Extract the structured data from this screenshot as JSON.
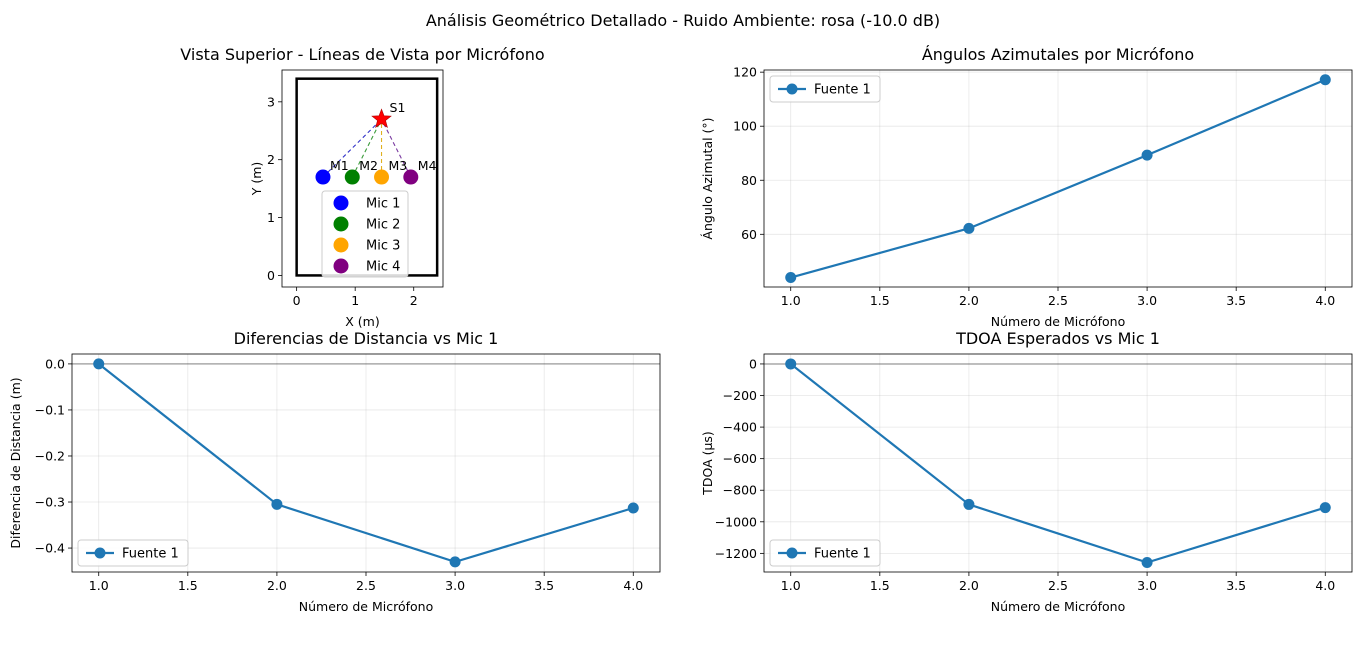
{
  "figure": {
    "suptitle": "Análisis Geométrico Detallado - Ruido Ambiente: rosa (-10.0 dB)"
  },
  "chart_data": [
    {
      "id": "top",
      "type": "scatter",
      "title": "Vista Superior - Líneas de Vista por Micrófono",
      "xlabel": "X (m)",
      "ylabel": "Y (m)",
      "xlim": [
        -0.25,
        2.5
      ],
      "ylim": [
        -0.2,
        3.55
      ],
      "xticks": [
        0,
        1,
        2
      ],
      "yticks": [
        0,
        1,
        2,
        3
      ],
      "grid": false,
      "room": {
        "x0": 0,
        "y0": 0,
        "x1": 2.4,
        "y1": 3.4
      },
      "source": {
        "label": "S1",
        "x": 1.45,
        "y": 2.7,
        "color": "#ff0000"
      },
      "mics": [
        {
          "label": "M1",
          "legend": "Mic 1",
          "x": 0.45,
          "y": 1.7,
          "color": "#0000ff",
          "line_color": "#3232c8"
        },
        {
          "label": "M2",
          "legend": "Mic 2",
          "x": 0.95,
          "y": 1.7,
          "color": "#008000",
          "line_color": "#3a9b3a"
        },
        {
          "label": "M3",
          "legend": "Mic 3",
          "x": 1.45,
          "y": 1.7,
          "color": "#ffa500",
          "line_color": "#e0b020"
        },
        {
          "label": "M4",
          "legend": "Mic 4",
          "x": 1.95,
          "y": 1.7,
          "color": "#800080",
          "line_color": "#7a3aa0"
        }
      ],
      "legend_loc": "lower-center"
    },
    {
      "id": "azimuth",
      "type": "line",
      "title": "Ángulos Azimutales por Micrófono",
      "xlabel": "Número de Micrófono",
      "ylabel": "Ángulo Azimutal (°)",
      "xlim": [
        0.85,
        4.15
      ],
      "ylim": [
        40.5,
        120.8
      ],
      "xticks": [
        1.0,
        1.5,
        2.0,
        2.5,
        3.0,
        3.5,
        4.0
      ],
      "yticks": [
        60,
        80,
        100,
        120
      ],
      "grid": true,
      "legend_loc": "upper-left",
      "series": [
        {
          "name": "Fuente 1",
          "x": [
            1,
            2,
            3,
            4
          ],
          "y": [
            44.0,
            62.2,
            89.3,
            117.2
          ]
        }
      ]
    },
    {
      "id": "distance",
      "type": "line",
      "title": "Diferencias de Distancia vs Mic 1",
      "xlabel": "Número de Micrófono",
      "ylabel": "Diferencia de Distancia (m)",
      "xlim": [
        0.85,
        4.15
      ],
      "ylim": [
        -0.452,
        0.0215
      ],
      "xticks": [
        1.0,
        1.5,
        2.0,
        2.5,
        3.0,
        3.5,
        4.0
      ],
      "yticks": [
        0.0,
        -0.1,
        -0.2,
        -0.3,
        -0.4
      ],
      "ytick_decimals": 1,
      "grid": true,
      "hline": 0,
      "legend_loc": "lower-left",
      "series": [
        {
          "name": "Fuente 1",
          "x": [
            1,
            2,
            3,
            4
          ],
          "y": [
            0.0,
            -0.305,
            -0.43,
            -0.313
          ]
        }
      ]
    },
    {
      "id": "tdoa",
      "type": "line",
      "title": "TDOA Esperados vs Mic 1",
      "xlabel": "Número de Micrófono",
      "ylabel": "TDOA (μs)",
      "xlim": [
        0.85,
        4.15
      ],
      "ylim": [
        -1318,
        63
      ],
      "xticks": [
        1.0,
        1.5,
        2.0,
        2.5,
        3.0,
        3.5,
        4.0
      ],
      "yticks": [
        0,
        -200,
        -400,
        -600,
        -800,
        -1000,
        -1200
      ],
      "grid": true,
      "hline": 0,
      "legend_loc": "lower-left",
      "series": [
        {
          "name": "Fuente 1",
          "x": [
            1,
            2,
            3,
            4
          ],
          "y": [
            0,
            -890,
            -1258,
            -910
          ]
        }
      ]
    }
  ]
}
